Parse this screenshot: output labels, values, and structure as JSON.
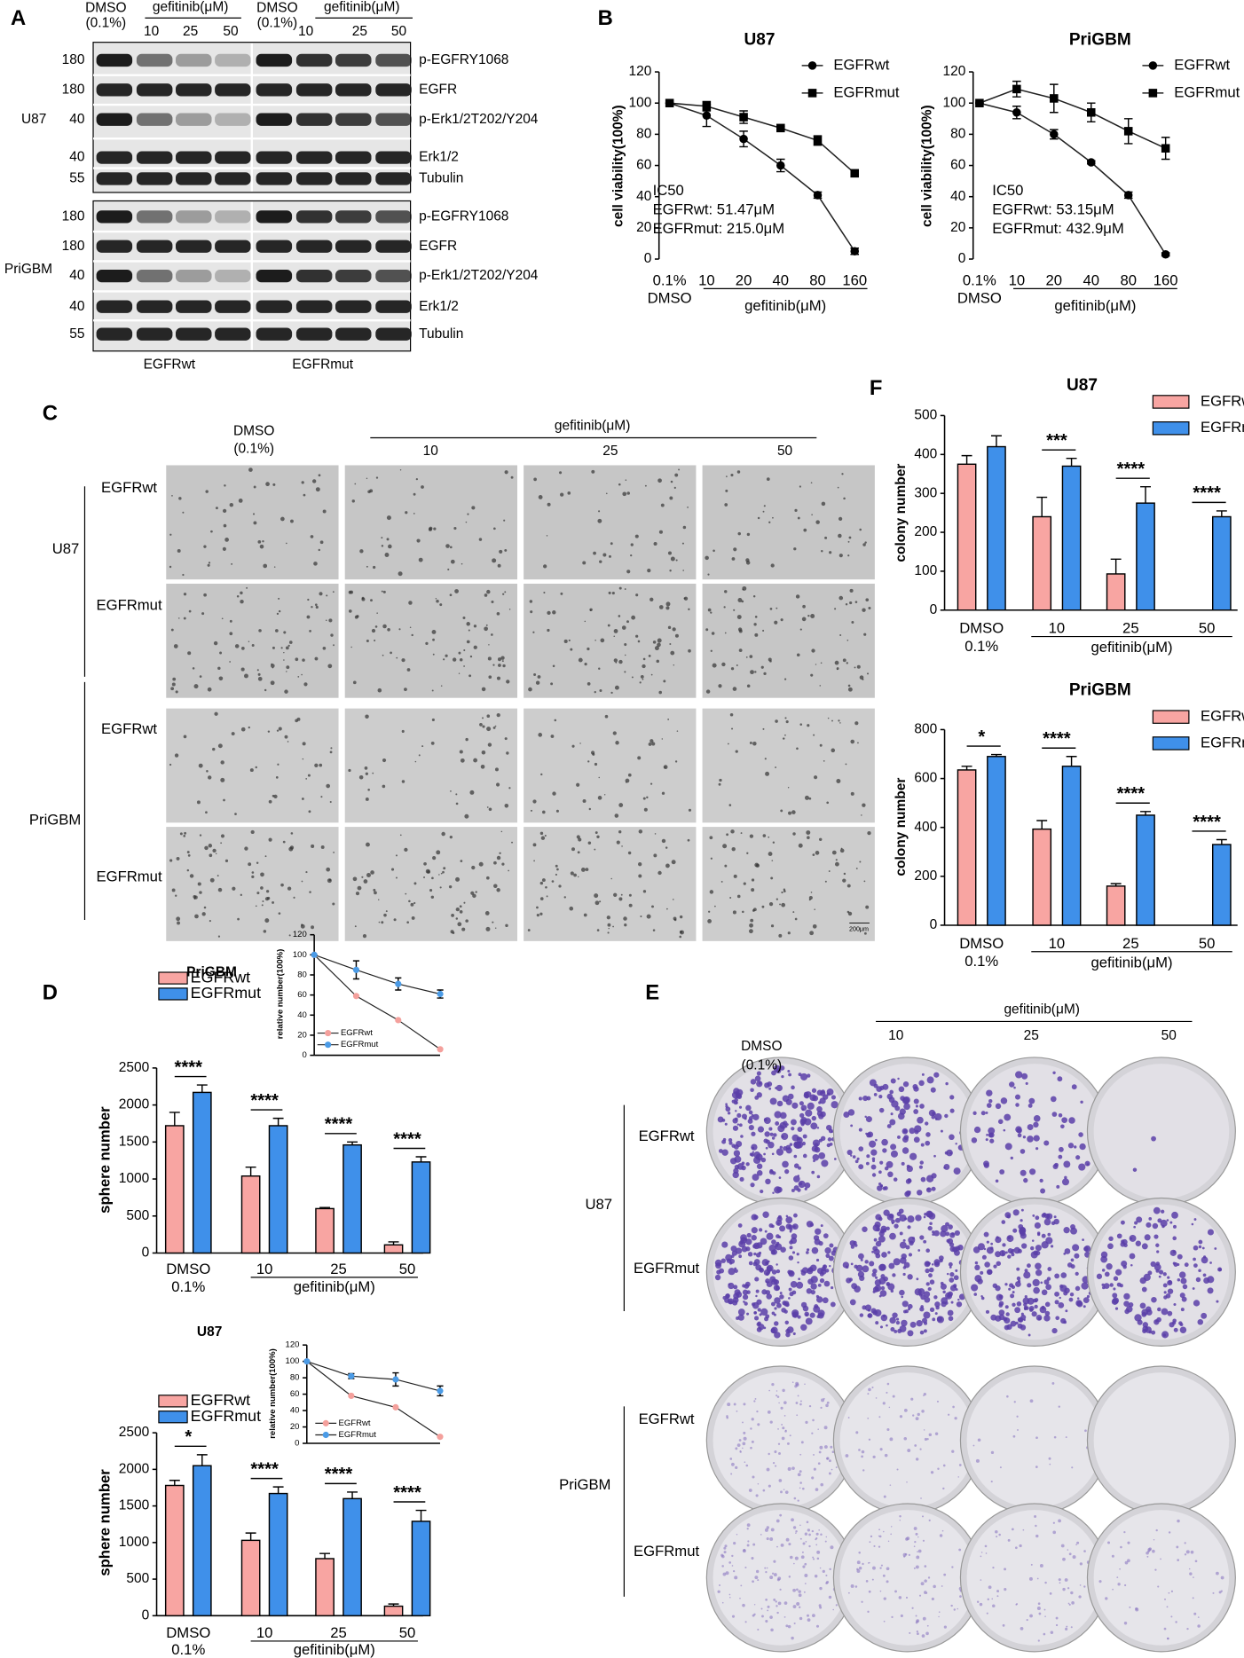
{
  "figure": {
    "panel_labels": [
      "A",
      "B",
      "C",
      "D",
      "E",
      "F"
    ],
    "blot": {
      "headers": [
        {
          "control": "DMSO",
          "control_dose": "(0.1%)",
          "treatment": "gefitinib(μM)",
          "doses": [
            "10",
            "25",
            "50"
          ]
        },
        {
          "control": "DMSO",
          "control_dose": "(0.1%)",
          "treatment": "gefitinib(μM)",
          "doses": [
            "10",
            "25",
            "50"
          ]
        }
      ],
      "cell_lines": [
        {
          "name": "U87",
          "rows": [
            {
              "marker": "180",
              "protein": "p-EGFRY1068"
            },
            {
              "marker": "180",
              "protein": "EGFR"
            },
            {
              "marker": "40",
              "protein": "p-Erk1/2T202/Y204"
            },
            {
              "marker": "40",
              "protein": "Erk1/2"
            },
            {
              "marker": "55",
              "protein": "Tubulin"
            }
          ]
        },
        {
          "name": "PriGBM",
          "rows": [
            {
              "marker": "180",
              "protein": "p-EGFRY1068"
            },
            {
              "marker": "180",
              "protein": "EGFR"
            },
            {
              "marker": "40",
              "protein": "p-Erk1/2T202/Y204"
            },
            {
              "marker": "40",
              "protein": "Erk1/2"
            },
            {
              "marker": "55",
              "protein": "Tubulin"
            }
          ]
        }
      ],
      "groups": [
        "EGFRwt",
        "EGFRmut"
      ]
    },
    "spheres": {
      "header": {
        "control": "DMSO",
        "control_dose": "(0.1%)",
        "treatment": "gefitinib(μM)",
        "doses": [
          "10",
          "25",
          "50"
        ]
      },
      "cell_lines": [
        {
          "name": "U87",
          "rows": [
            "EGFRwt",
            "EGFRmut"
          ]
        },
        {
          "name": "PriGBM",
          "rows": [
            "EGFRwt",
            "EGFRmut"
          ]
        }
      ],
      "scale_bar": "200μm"
    },
    "plates": {
      "header": {
        "control": "DMSO",
        "control_dose": "(0.1%)",
        "treatment": "gefitinib(μM)",
        "doses": [
          "10",
          "25",
          "50"
        ]
      },
      "cell_lines": [
        {
          "name": "U87",
          "rows": [
            "EGFRwt",
            "EGFRmut"
          ]
        },
        {
          "name": "PriGBM",
          "rows": [
            "EGFRwt",
            "EGFRmut"
          ]
        }
      ]
    }
  },
  "chart_data": [
    {
      "type": "line",
      "title": "U87",
      "ylabel": "cell viability(100%)",
      "categories": [
        "0.1%",
        "10",
        "20",
        "40",
        "80",
        "160"
      ],
      "control_note": "DMSO",
      "xlabel": "gefitinib(μM)",
      "annotation": [
        "IC50",
        "EGFRwt: 51.47μM",
        "EGFRmut: 215.0μM"
      ],
      "ylim": [
        0,
        120
      ],
      "yticks": [
        0,
        20,
        40,
        60,
        80,
        100,
        120
      ],
      "series": [
        {
          "name": "EGFRwt",
          "color": "#000000",
          "marker": "circle",
          "values": [
            100,
            92,
            77,
            60,
            41,
            5
          ],
          "errors": [
            0,
            7,
            5,
            4,
            2,
            2
          ]
        },
        {
          "name": "EGFRmut",
          "color": "#000000",
          "marker": "square",
          "values": [
            100,
            98,
            91,
            84,
            76,
            55
          ],
          "errors": [
            0,
            3,
            4,
            1,
            3,
            2
          ]
        }
      ]
    },
    {
      "type": "line",
      "title": "PriGBM",
      "ylabel": "cell viability(100%)",
      "categories": [
        "0.1%",
        "10",
        "20",
        "40",
        "80",
        "160"
      ],
      "control_note": "DMSO",
      "xlabel": "gefitinib(μM)",
      "annotation": [
        "IC50",
        "EGFRwt: 53.15μM",
        "EGFRmut: 432.9μM"
      ],
      "ylim": [
        0,
        120
      ],
      "yticks": [
        0,
        20,
        40,
        60,
        80,
        100,
        120
      ],
      "series": [
        {
          "name": "EGFRwt",
          "color": "#000000",
          "marker": "circle",
          "values": [
            100,
            94,
            80,
            62,
            41,
            3
          ],
          "errors": [
            0,
            4,
            3,
            1,
            2,
            1
          ]
        },
        {
          "name": "EGFRmut",
          "color": "#000000",
          "marker": "square",
          "values": [
            100,
            109,
            103,
            94,
            82,
            71
          ],
          "errors": [
            0,
            5,
            9,
            6,
            8,
            7
          ]
        }
      ]
    },
    {
      "type": "bar",
      "title": "U87",
      "ylabel": "colony  number",
      "categories": [
        "DMSO",
        "10",
        "25",
        "50"
      ],
      "control_note": "0.1%",
      "xlabel": "gefitinib(μM)",
      "ylim": [
        0,
        500
      ],
      "yticks": [
        0,
        100,
        200,
        300,
        400,
        500
      ],
      "significance": [
        null,
        "***",
        "****",
        "****"
      ],
      "series": [
        {
          "name": "EGFRwt",
          "color": "#f8a5a2",
          "values": [
            375,
            240,
            93,
            0
          ],
          "errors": [
            22,
            50,
            38,
            null
          ]
        },
        {
          "name": "EGFRmut",
          "color": "#3f90ea",
          "values": [
            420,
            370,
            275,
            240
          ],
          "errors": [
            28,
            20,
            42,
            15
          ]
        }
      ]
    },
    {
      "type": "bar",
      "title": "PriGBM",
      "ylabel": "colony  number",
      "categories": [
        "DMSO",
        "10",
        "25",
        "50"
      ],
      "control_note": "0.1%",
      "xlabel": "gefitinib(μM)",
      "ylim": [
        0,
        800
      ],
      "yticks": [
        0,
        200,
        400,
        600,
        800
      ],
      "significance": [
        "*",
        "****",
        "****",
        "****"
      ],
      "series": [
        {
          "name": "EGFRwt",
          "color": "#f8a5a2",
          "values": [
            635,
            393,
            160,
            0
          ],
          "errors": [
            15,
            35,
            10,
            null
          ]
        },
        {
          "name": "EGFRmut",
          "color": "#3f90ea",
          "values": [
            690,
            650,
            450,
            330
          ],
          "errors": [
            8,
            40,
            15,
            20
          ]
        }
      ]
    },
    {
      "type": "bar",
      "title": "PriGBM",
      "ylabel": "sphere  number",
      "categories": [
        "DMSO",
        "10",
        "25",
        "50"
      ],
      "control_note": "0.1%",
      "xlabel": "gefitinib(μM)",
      "ylim": [
        0,
        2500
      ],
      "yticks": [
        0,
        500,
        1000,
        1500,
        2000,
        2500
      ],
      "significance": [
        "****",
        "****",
        "****",
        "****"
      ],
      "series": [
        {
          "name": "EGFRwt",
          "color": "#f8a5a2",
          "values": [
            1720,
            1040,
            600,
            110
          ],
          "errors": [
            180,
            120,
            15,
            40
          ]
        },
        {
          "name": "EGFRmut",
          "color": "#3f90ea",
          "values": [
            2170,
            1720,
            1460,
            1230
          ],
          "errors": [
            100,
            100,
            40,
            70
          ]
        }
      ]
    },
    {
      "type": "line",
      "ylabel": "relative number(100%)",
      "categories": [
        null,
        null,
        null,
        null
      ],
      "ylim": [
        0,
        120
      ],
      "yticks": [
        0,
        20,
        40,
        60,
        80,
        100,
        120
      ],
      "series": [
        {
          "name": "EGFRwt",
          "color": "#f4a09c",
          "marker": "circle",
          "values": [
            100,
            59,
            35,
            6
          ]
        },
        {
          "name": "EGFRmut",
          "color": "#4b9be6",
          "marker": "circle",
          "values": [
            100,
            85,
            71,
            61
          ],
          "errors": [
            0,
            9,
            6,
            4
          ]
        }
      ]
    },
    {
      "type": "bar",
      "title": "U87",
      "ylabel": "sphere  number",
      "categories": [
        "DMSO",
        "10",
        "25",
        "50"
      ],
      "control_note": "0.1%",
      "xlabel": "gefitinib(μM)",
      "ylim": [
        0,
        2500
      ],
      "yticks": [
        0,
        500,
        1000,
        1500,
        2000,
        2500
      ],
      "significance": [
        "*",
        "****",
        "****",
        "****"
      ],
      "series": [
        {
          "name": "EGFRwt",
          "color": "#f8a5a2",
          "values": [
            1780,
            1030,
            780,
            130
          ],
          "errors": [
            70,
            100,
            70,
            30
          ]
        },
        {
          "name": "EGFRmut",
          "color": "#3f90ea",
          "values": [
            2050,
            1670,
            1600,
            1290
          ],
          "errors": [
            150,
            90,
            90,
            150
          ]
        }
      ]
    },
    {
      "type": "line",
      "ylabel": "relative number(100%)",
      "categories": [
        null,
        null,
        null,
        null
      ],
      "ylim": [
        0,
        120
      ],
      "yticks": [
        0,
        20,
        40,
        60,
        80,
        100,
        120
      ],
      "series": [
        {
          "name": "EGFRwt",
          "color": "#f4a09c",
          "marker": "circle",
          "values": [
            100,
            58,
            44,
            8
          ]
        },
        {
          "name": "EGFRmut",
          "color": "#4b9be6",
          "marker": "circle",
          "values": [
            100,
            82,
            78,
            64
          ],
          "errors": [
            0,
            3,
            8,
            6
          ]
        }
      ]
    }
  ]
}
